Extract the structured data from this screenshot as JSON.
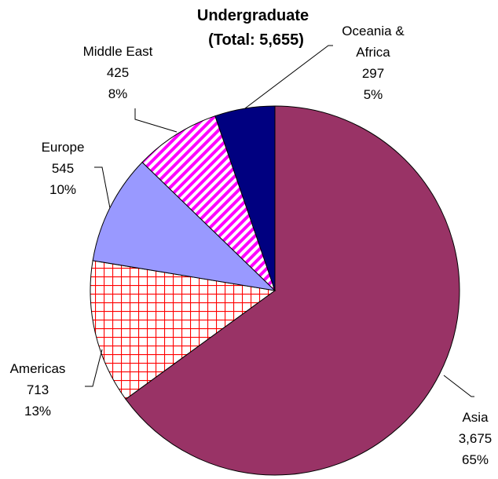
{
  "chart_data": {
    "type": "pie",
    "title": "Undergraduate",
    "subtitle": "(Total: 5,655)",
    "categories": [
      "Asia",
      "Americas",
      "Europe",
      "Middle East",
      "Oceania & Africa"
    ],
    "values": [
      3675,
      713,
      545,
      425,
      297
    ],
    "value_labels": [
      "3,675",
      "713",
      "545",
      "425",
      "297"
    ],
    "percents": [
      65,
      13,
      10,
      8,
      5
    ],
    "percent_labels": [
      "65%",
      "13%",
      "10%",
      "8%",
      "5%"
    ],
    "colors": [
      "#993366",
      "#ff0000",
      "#9999ff",
      "#ff00ff",
      "#000080"
    ],
    "patterns": [
      "solid",
      "grid",
      "solid",
      "diagonal",
      "solid"
    ]
  }
}
